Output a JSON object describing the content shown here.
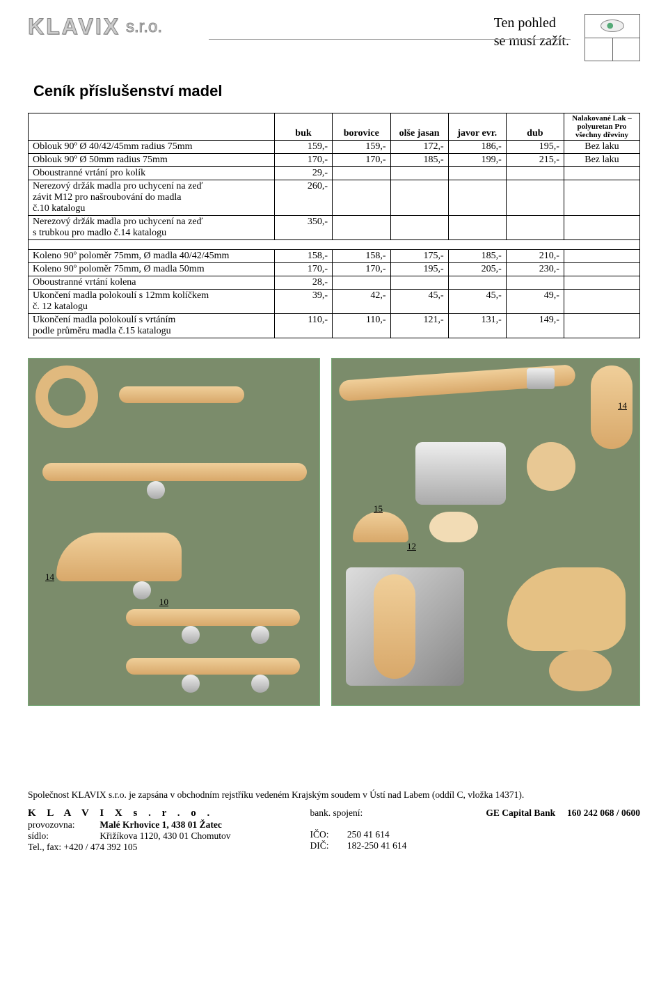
{
  "header": {
    "logo_main": "KLAVIX",
    "logo_suffix": "s.r.o.",
    "slogan_line1": "Ten pohled",
    "slogan_line2": "se musí zažít."
  },
  "title": "Ceník příslušenství madel",
  "table": {
    "head": {
      "c1": "buk",
      "c2": "borovice",
      "c3": "olše jasan",
      "c4": "javor evr.",
      "c5": "dub",
      "c6": "Nalakované Lak – polyuretan Pro všechny dřeviny"
    },
    "rows_a": [
      {
        "desc": "Oblouk 90º Ø 40/42/45mm   radius 75mm",
        "v": [
          "159,-",
          "159,-",
          "172,-",
          "186,-",
          "195,-",
          "Bez laku"
        ]
      },
      {
        "desc": "Oblouk 90º Ø 50mm              radius 75mm",
        "v": [
          "170,-",
          "170,-",
          "185,-",
          "199,-",
          "215,-",
          "Bez laku"
        ]
      },
      {
        "desc": "Oboustranné vrtání pro kolík",
        "v": [
          "29,-",
          "",
          "",
          "",
          "",
          ""
        ]
      },
      {
        "desc": "Nerezový držák madla pro uchycení na zeď\nzávit M12 pro našroubování do madla\nč.10 katalogu",
        "v": [
          "260,-",
          "",
          "",
          "",
          "",
          ""
        ]
      },
      {
        "desc": "Nerezový držák madla pro uchycení na zeď\ns trubkou  pro madlo č.14 katalogu",
        "v": [
          "350,-",
          "",
          "",
          "",
          "",
          ""
        ]
      }
    ],
    "rows_b": [
      {
        "desc": "Koleno 90º poloměr 75mm, Ø madla 40/42/45mm",
        "v": [
          "158,-",
          "158,-",
          "175,-",
          "185,-",
          "210,-",
          ""
        ]
      },
      {
        "desc": "Koleno 90º poloměr 75mm, Ø madla 50mm",
        "v": [
          "170,-",
          "170,-",
          "195,-",
          "205,-",
          "230,-",
          ""
        ]
      },
      {
        "desc": "Oboustranné vrtání kolena",
        "v": [
          "28,-",
          "",
          "",
          "",
          "",
          ""
        ]
      },
      {
        "desc": "Ukončení madla polokoulí s 12mm kolíčkem\nč. 12 katalogu",
        "v": [
          "39,-",
          "42,-",
          "45,-",
          "45,-",
          "49,-",
          ""
        ]
      },
      {
        "desc": "Ukončení madla polokoulí s vrtáním\npodle průměru madla č.15 katalogu",
        "v": [
          "110,-",
          "110,-",
          "121,-",
          "131,-",
          "149,-",
          ""
        ]
      }
    ]
  },
  "image_labels": {
    "l14a": "14",
    "l14b": "14",
    "l10": "10",
    "l12": "12",
    "l15": "15"
  },
  "footer": {
    "note": "Společnost KLAVIX s.r.o. je zapsána v obchodním rejstříku vedeném Krajským soudem v Ústí nad Labem (oddíl C, vložka 14371).",
    "company": "K L A V I X   s . r . o .",
    "labels": {
      "provozovna": "provozovna:",
      "sidlo": "sídlo:",
      "telfax": "Tel., fax: +420 / 474 392 105",
      "bank": "bank. spojení:",
      "ico": "IČO:",
      "dic": "DIČ:"
    },
    "values": {
      "provozovna": "Malé Krhovice  1, 438 01 Žatec",
      "sidlo": "Křižíkova 1120, 430 01  Chomutov",
      "bank_name": "GE Capital Bank",
      "bank_acc": "160 242 068 / 0600",
      "ico": "250 41 614",
      "dic": "182-250 41 614"
    }
  },
  "style": {
    "page_bg": "#ffffff",
    "img_bg": "#7b8c6b",
    "border_color": "#000000",
    "wood_color1": "#f0cf9a",
    "wood_color2": "#d8a86a",
    "steel_color1": "#eeeeee",
    "steel_color2": "#aaaaaa"
  }
}
